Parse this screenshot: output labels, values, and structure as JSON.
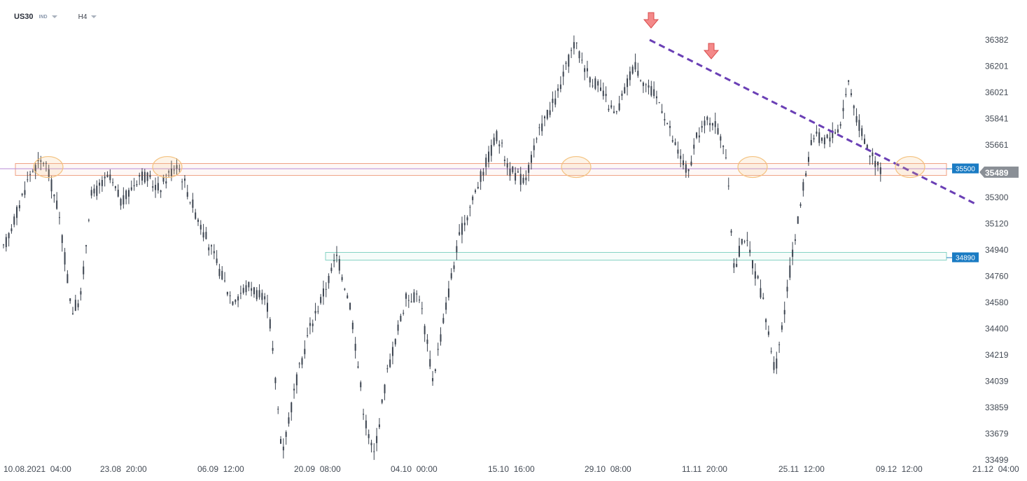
{
  "header": {
    "symbol": "US30",
    "feed": "IND",
    "timeframe": "H4"
  },
  "colors": {
    "candle": "#3b434f",
    "trendline": "#6a3fb5",
    "resistance_zone": "#f0a083",
    "support_zone": "#86d3c4",
    "circle": "#f4c27f",
    "arrow": "#f16c6c",
    "tag_blue": "#1a7bc3",
    "tag_gray": "#8a8f96"
  },
  "chart_data": {
    "type": "candlestick",
    "timeframe": "H4",
    "x_ticks": [
      "10.08.2021  04:00",
      "23.08  20:00",
      "06.09  12:00",
      "20.09  08:00",
      "04.10  00:00",
      "15.10  16:00",
      "29.10  08:00",
      "11.11  20:00",
      "25.11  12:00",
      "09.12  12:00",
      "21.12  04:00"
    ],
    "y_ticks": [
      33499,
      33679,
      33859,
      34039,
      34219,
      34400,
      34580,
      34760,
      34940,
      35120,
      35300,
      35481,
      35661,
      35841,
      36021,
      36201,
      36382
    ],
    "ylim": [
      33499,
      36382
    ],
    "price_path": [
      [
        0.0,
        34940
      ],
      [
        0.03,
        35480
      ],
      [
        0.045,
        35560
      ],
      [
        0.06,
        35210
      ],
      [
        0.075,
        34520
      ],
      [
        0.085,
        34620
      ],
      [
        0.095,
        35300
      ],
      [
        0.115,
        35440
      ],
      [
        0.13,
        35260
      ],
      [
        0.15,
        35470
      ],
      [
        0.17,
        35360
      ],
      [
        0.19,
        35540
      ],
      [
        0.21,
        35200
      ],
      [
        0.23,
        34900
      ],
      [
        0.25,
        34600
      ],
      [
        0.27,
        34700
      ],
      [
        0.29,
        34550
      ],
      [
        0.305,
        33550
      ],
      [
        0.32,
        34020
      ],
      [
        0.335,
        34400
      ],
      [
        0.35,
        34640
      ],
      [
        0.365,
        34900
      ],
      [
        0.38,
        34550
      ],
      [
        0.395,
        33800
      ],
      [
        0.405,
        33520
      ],
      [
        0.42,
        34100
      ],
      [
        0.44,
        34600
      ],
      [
        0.455,
        34640
      ],
      [
        0.47,
        34050
      ],
      [
        0.49,
        34750
      ],
      [
        0.5,
        35050
      ],
      [
        0.52,
        35400
      ],
      [
        0.54,
        35730
      ],
      [
        0.555,
        35480
      ],
      [
        0.57,
        35410
      ],
      [
        0.59,
        35810
      ],
      [
        0.605,
        35980
      ],
      [
        0.625,
        36360
      ],
      [
        0.64,
        36150
      ],
      [
        0.655,
        36020
      ],
      [
        0.67,
        35850
      ],
      [
        0.69,
        36220
      ],
      [
        0.705,
        36060
      ],
      [
        0.72,
        35940
      ],
      [
        0.735,
        35650
      ],
      [
        0.75,
        35460
      ],
      [
        0.76,
        35740
      ],
      [
        0.775,
        35850
      ],
      [
        0.79,
        35650
      ],
      [
        0.8,
        34800
      ],
      [
        0.81,
        35060
      ],
      [
        0.83,
        34630
      ],
      [
        0.845,
        34100
      ],
      [
        0.86,
        34760
      ],
      [
        0.875,
        35360
      ],
      [
        0.885,
        35720
      ],
      [
        0.9,
        35700
      ],
      [
        0.915,
        35780
      ],
      [
        0.925,
        36100
      ],
      [
        0.935,
        35820
      ],
      [
        0.95,
        35580
      ],
      [
        0.96,
        35500
      ]
    ],
    "last_price": 35489,
    "levels": [
      {
        "kind": "resistance",
        "price": 35500,
        "label": "35500"
      },
      {
        "kind": "support",
        "price": 34890,
        "label": "34890"
      }
    ],
    "trendline": {
      "from": {
        "price": 36382
      },
      "to": {
        "price": 35260
      }
    },
    "annotations": [
      "2 red down arrows at lower highs",
      "5 orange circles at tests of 35500"
    ],
    "grid": false,
    "legend": "none"
  }
}
